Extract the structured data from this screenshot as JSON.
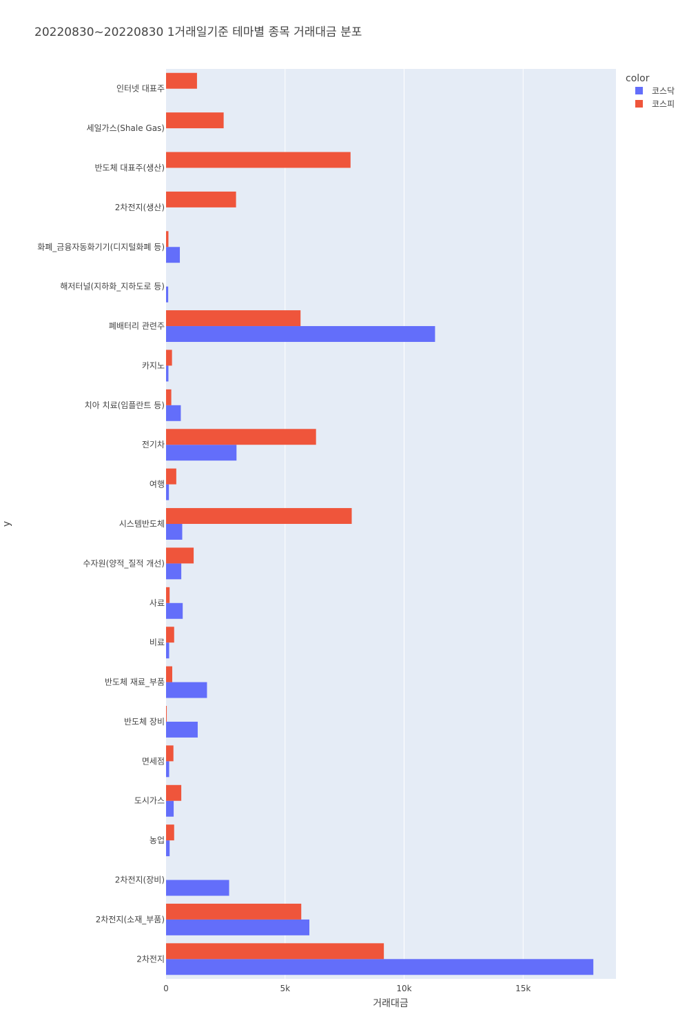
{
  "chart_data": {
    "type": "bar",
    "orientation": "horizontal",
    "barmode": "group",
    "title": "20220830~20220830 1거래일기준 테마별 종목 거래대금 분포",
    "xlabel": "거래대금",
    "ylabel": "y",
    "xlim": [
      0,
      18900
    ],
    "xticks": [
      0,
      5000,
      10000,
      15000
    ],
    "xtick_labels": [
      "0",
      "5k",
      "10k",
      "15k"
    ],
    "grid": true,
    "legend": {
      "title": "color",
      "placement": "top-right"
    },
    "categories": [
      "2차전지",
      "2차전지(소재_부품)",
      "2차전지(장비)",
      "농업",
      "도시가스",
      "면세점",
      "반도체 장비",
      "반도체 재료_부품",
      "비료",
      "사료",
      "수자원(양적_질적 개선)",
      "시스템반도체",
      "여행",
      "전기차",
      "치아 치료(임플란트 등)",
      "카지노",
      "폐배터리 관련주",
      "해저터널(지하화_지하도로 등)",
      "화폐_금융자동화기기(디지털화폐 등)",
      "2차전지(생산)",
      "반도체 대표주(생산)",
      "세일가스(Shale Gas)",
      "인터넷 대표주"
    ],
    "series": [
      {
        "name": "코스닥",
        "color": "#636efa",
        "values": [
          17950,
          6020,
          2650,
          150,
          320,
          130,
          1330,
          1720,
          130,
          700,
          640,
          680,
          120,
          2960,
          620,
          100,
          11300,
          90,
          580,
          0,
          0,
          0,
          0
        ]
      },
      {
        "name": "코스피",
        "color": "#ef553b",
        "values": [
          9150,
          5680,
          0,
          340,
          640,
          310,
          30,
          260,
          340,
          150,
          1160,
          7800,
          430,
          6300,
          220,
          250,
          5650,
          0,
          100,
          2940,
          7750,
          2420,
          1300
        ]
      }
    ]
  }
}
